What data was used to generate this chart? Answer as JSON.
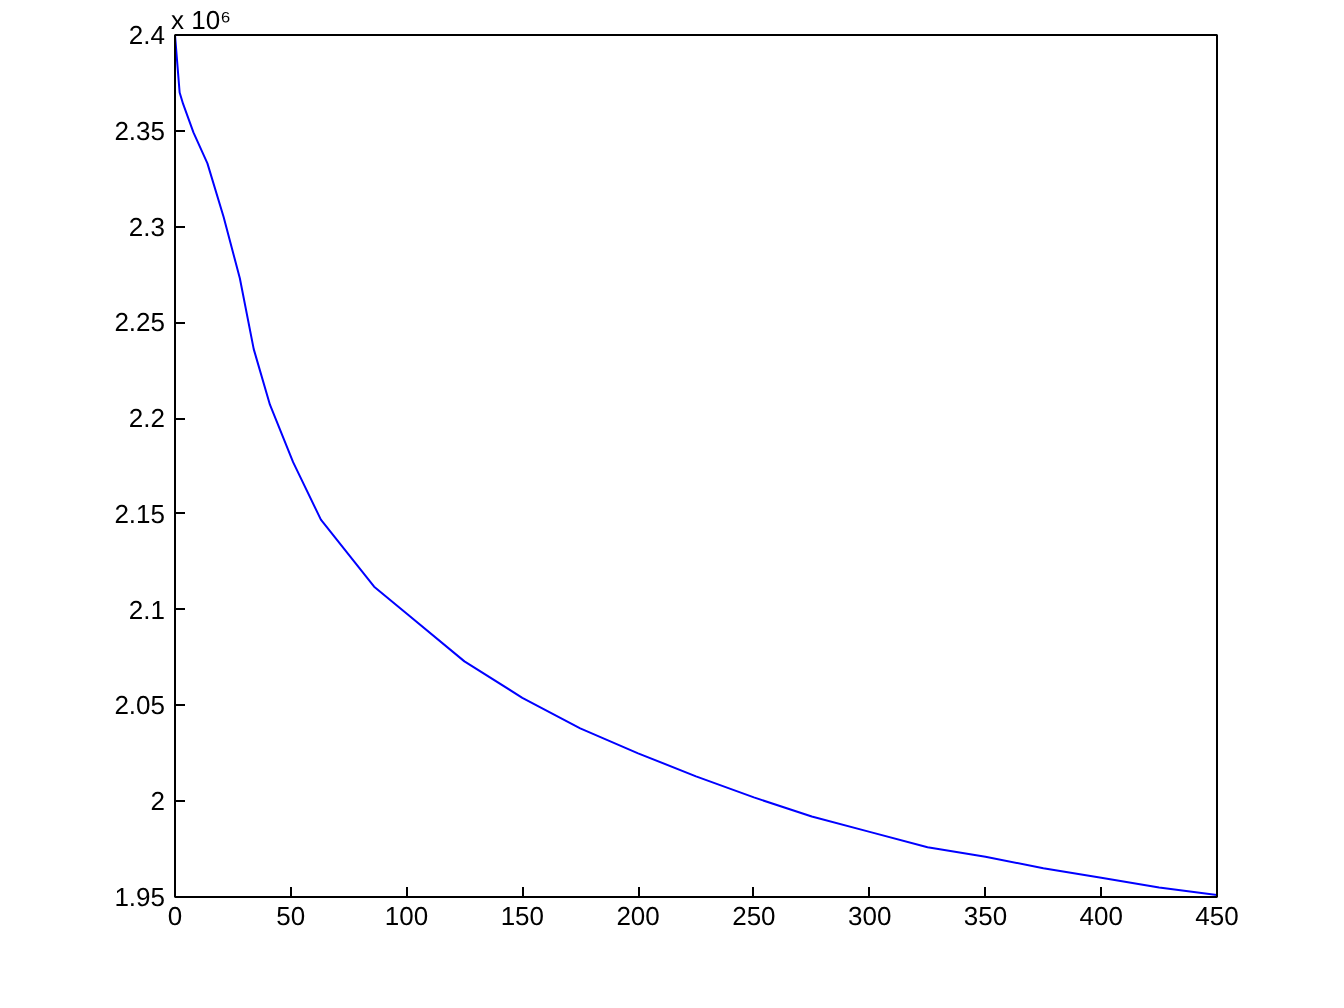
{
  "chart_data": {
    "type": "line",
    "x": [
      0,
      2,
      3.5,
      8,
      14,
      21,
      28,
      34,
      41,
      51,
      63,
      86,
      100,
      125,
      150,
      175,
      200,
      225,
      250,
      275,
      300,
      325,
      350,
      375,
      400,
      425,
      450
    ],
    "series": [
      {
        "color": "#0000ff",
        "values": [
          2.4,
          2.37,
          2.364,
          2.349,
          2.333,
          2.305,
          2.273,
          2.236,
          2.207,
          2.177,
          2.147,
          2.112,
          2.098,
          2.073,
          2.054,
          2.038,
          2.025,
          2.013,
          2.002,
          1.992,
          1.984,
          1.976,
          1.971,
          1.965,
          1.96,
          1.955,
          1.951
        ]
      }
    ],
    "xlim": [
      0,
      450
    ],
    "xticks": [
      0,
      50,
      100,
      150,
      200,
      250,
      300,
      350,
      400,
      450
    ],
    "ylim": [
      1.95,
      2.4
    ],
    "yticks": [
      1.95,
      2,
      2.05,
      2.1,
      2.15,
      2.2,
      2.25,
      2.3,
      2.35,
      2.4
    ],
    "annotations": [
      "x 10⁶"
    ],
    "grid": false,
    "marker": "none",
    "line_style": "solid"
  }
}
